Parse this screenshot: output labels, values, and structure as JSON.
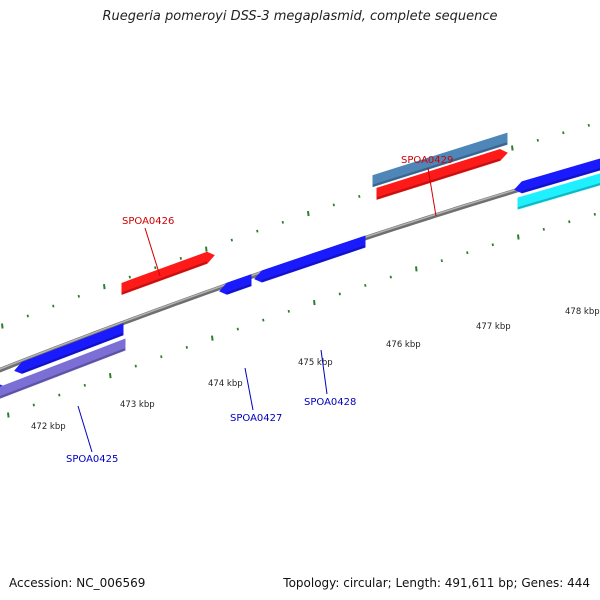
{
  "title": "Ruegeria pomeroyi DSS-3 megaplasmid, complete sequence",
  "accession": "Accession: NC_006569",
  "topology": "Topology: circular; Length: 491,611 bp; Genes: 444",
  "colors": {
    "backbone": "#8a8a8a",
    "tick": "#2f7d2f",
    "red": "#ff1a1a",
    "blue": "#1a1aff",
    "steel": "#4f86b8",
    "lavender": "#7b6fd6",
    "cyan": "#1ff0ff",
    "label_red": "#d00000",
    "label_blue": "#0000c0"
  },
  "scale": {
    "unit": "kbp",
    "labels": [
      "472 kbp",
      "473 kbp",
      "474 kbp",
      "475 kbp",
      "476 kbp",
      "477 kbp",
      "478 kbp"
    ]
  },
  "genes": {
    "labels": [
      "SPOA0425",
      "SPOA0426",
      "SPOA0427",
      "SPOA0428",
      "SPOA0429"
    ]
  }
}
